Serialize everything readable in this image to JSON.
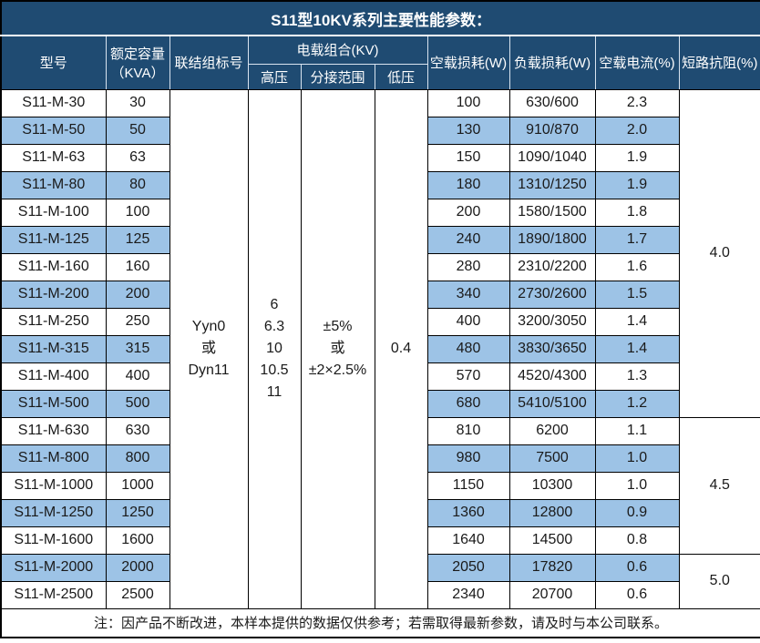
{
  "title": "S11型10KV系列主要性能参数：",
  "header": {
    "model": "型号",
    "capacity_line1": "额定容量",
    "capacity_line2": "（KVA）",
    "connection": "联结组标号",
    "voltage_group": "电载组合(KV)",
    "hv": "高压",
    "tap_range": "分接范围",
    "lv": "低压",
    "no_load_loss": "空载损耗(W)",
    "load_loss": "负载损耗(W)",
    "no_load_current": "空载电流(%)",
    "impedance": "短路抗阻(%)"
  },
  "merged": {
    "connection_lines": [
      "Yyn0",
      "或",
      "Dyn11"
    ],
    "hv_lines": [
      "6",
      "6.3",
      "10",
      "10.5",
      "11"
    ],
    "tap_lines": [
      "±5%",
      "或",
      "±2×2.5%"
    ],
    "lv": "0.4"
  },
  "impedance_groups": [
    {
      "value": "4.0",
      "row_start": 0,
      "row_span": 12
    },
    {
      "value": "4.5",
      "row_start": 12,
      "row_span": 5
    },
    {
      "value": "5.0",
      "row_start": 17,
      "row_span": 2
    }
  ],
  "rows": [
    {
      "model": "S11-M-30",
      "capacity": "30",
      "no_load_loss": "100",
      "load_loss": "630/600",
      "no_load_current": "2.3"
    },
    {
      "model": "S11-M-50",
      "capacity": "50",
      "no_load_loss": "130",
      "load_loss": "910/870",
      "no_load_current": "2.0"
    },
    {
      "model": "S11-M-63",
      "capacity": "63",
      "no_load_loss": "150",
      "load_loss": "1090/1040",
      "no_load_current": "1.9"
    },
    {
      "model": "S11-M-80",
      "capacity": "80",
      "no_load_loss": "180",
      "load_loss": "1310/1250",
      "no_load_current": "1.9"
    },
    {
      "model": "S11-M-100",
      "capacity": "100",
      "no_load_loss": "200",
      "load_loss": "1580/1500",
      "no_load_current": "1.8"
    },
    {
      "model": "S11-M-125",
      "capacity": "125",
      "no_load_loss": "240",
      "load_loss": "1890/1800",
      "no_load_current": "1.7"
    },
    {
      "model": "S11-M-160",
      "capacity": "160",
      "no_load_loss": "280",
      "load_loss": "2310/2200",
      "no_load_current": "1.6"
    },
    {
      "model": "S11-M-200",
      "capacity": "200",
      "no_load_loss": "340",
      "load_loss": "2730/2600",
      "no_load_current": "1.5"
    },
    {
      "model": "S11-M-250",
      "capacity": "250",
      "no_load_loss": "400",
      "load_loss": "3200/3050",
      "no_load_current": "1.4"
    },
    {
      "model": "S11-M-315",
      "capacity": "315",
      "no_load_loss": "480",
      "load_loss": "3830/3650",
      "no_load_current": "1.4"
    },
    {
      "model": "S11-M-400",
      "capacity": "400",
      "no_load_loss": "570",
      "load_loss": "4520/4300",
      "no_load_current": "1.3"
    },
    {
      "model": "S11-M-500",
      "capacity": "500",
      "no_load_loss": "680",
      "load_loss": "5410/5100",
      "no_load_current": "1.2"
    },
    {
      "model": "S11-M-630",
      "capacity": "630",
      "no_load_loss": "810",
      "load_loss": "6200",
      "no_load_current": "1.1"
    },
    {
      "model": "S11-M-800",
      "capacity": "800",
      "no_load_loss": "980",
      "load_loss": "7500",
      "no_load_current": "1.0"
    },
    {
      "model": "S11-M-1000",
      "capacity": "1000",
      "no_load_loss": "1150",
      "load_loss": "10300",
      "no_load_current": "1.0"
    },
    {
      "model": "S11-M-1250",
      "capacity": "1250",
      "no_load_loss": "1360",
      "load_loss": "12800",
      "no_load_current": "0.9"
    },
    {
      "model": "S11-M-1600",
      "capacity": "1600",
      "no_load_loss": "1640",
      "load_loss": "14500",
      "no_load_current": "0.8"
    },
    {
      "model": "S11-M-2000",
      "capacity": "2000",
      "no_load_loss": "2050",
      "load_loss": "17820",
      "no_load_current": "0.6"
    },
    {
      "model": "S11-M-2500",
      "capacity": "2500",
      "no_load_loss": "2340",
      "load_loss": "20700",
      "no_load_current": "0.6"
    }
  ],
  "note": "注：因产品不断改进，本样本提供的数据仅供参考；若需取得最新参数，请及时与本公司联系。",
  "colors": {
    "header_bg": "#1f4b72",
    "stripe": "#9dc3e6",
    "border": "#000000",
    "header_text": "#ffffff"
  }
}
